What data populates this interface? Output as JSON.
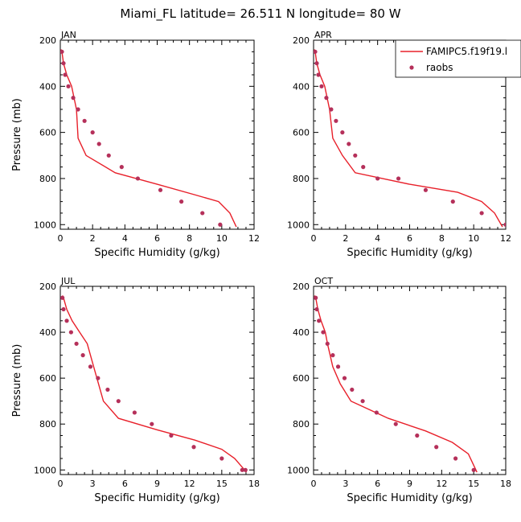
{
  "title": "Miami_FL  latitude= 26.511 N longitude= 80 W",
  "colors": {
    "model": "#e8202a",
    "obs": "#b5305a",
    "axis": "#000000"
  },
  "legend": {
    "entries": [
      {
        "label": "FAMIPC5.f19f19.l",
        "kind": "line"
      },
      {
        "label": "raobs",
        "kind": "marker"
      }
    ]
  },
  "chart_data": [
    {
      "type": "line",
      "panel": "JAN",
      "xlabel": "Specific Humidity (g/kg)",
      "ylabel": "Pressure (mb)",
      "xlim": [
        0,
        12
      ],
      "ylim": [
        1020,
        200
      ],
      "xticks": [
        0,
        2,
        4,
        6,
        8,
        10,
        12
      ],
      "yticks": [
        200,
        400,
        600,
        800,
        1000
      ],
      "series": [
        {
          "name": "FAMIPC5.f19f19.l",
          "kind": "line",
          "x": [
            0.05,
            0.1,
            0.2,
            0.4,
            0.7,
            1.0,
            1.1,
            1.6,
            3.4,
            6.0,
            8.3,
            9.8,
            10.5,
            10.9
          ],
          "y": [
            240,
            250,
            300,
            350,
            400,
            500,
            625,
            700,
            775,
            825,
            870,
            900,
            950,
            1010
          ]
        },
        {
          "name": "raobs",
          "kind": "scatter",
          "x": [
            0.1,
            0.2,
            0.3,
            0.5,
            0.8,
            1.1,
            1.5,
            2.0,
            2.4,
            3.0,
            3.8,
            4.8,
            6.2,
            7.5,
            8.8,
            9.9
          ],
          "y": [
            250,
            300,
            350,
            400,
            450,
            500,
            550,
            600,
            650,
            700,
            750,
            800,
            850,
            900,
            950,
            1000
          ]
        }
      ]
    },
    {
      "type": "line",
      "panel": "APR",
      "xlabel": "Specific Humidity (g/kg)",
      "ylabel": "",
      "xlim": [
        0,
        12
      ],
      "ylim": [
        1020,
        200
      ],
      "xticks": [
        0,
        2,
        4,
        6,
        8,
        10,
        12
      ],
      "yticks": [
        200,
        400,
        600,
        800,
        1000
      ],
      "series": [
        {
          "name": "FAMIPC5.f19f19.l",
          "kind": "line",
          "x": [
            0.05,
            0.1,
            0.2,
            0.4,
            0.7,
            1.0,
            1.2,
            1.8,
            2.6,
            6.0,
            9.0,
            10.5,
            11.3,
            11.8
          ],
          "y": [
            240,
            250,
            300,
            350,
            400,
            500,
            625,
            700,
            775,
            825,
            860,
            900,
            950,
            1010
          ]
        },
        {
          "name": "raobs",
          "kind": "scatter",
          "x": [
            0.1,
            0.2,
            0.3,
            0.5,
            0.8,
            1.1,
            1.4,
            1.8,
            2.2,
            2.6,
            3.1,
            4.0,
            5.3,
            7.0,
            8.7,
            10.5,
            12.0
          ],
          "y": [
            250,
            300,
            350,
            400,
            450,
            500,
            550,
            600,
            650,
            700,
            750,
            800,
            800,
            850,
            900,
            950,
            1000
          ]
        }
      ]
    },
    {
      "type": "line",
      "panel": "JUL",
      "xlabel": "Specific Humidity (g/kg)",
      "ylabel": "Pressure (mb)",
      "xlim": [
        0,
        18
      ],
      "ylim": [
        1020,
        200
      ],
      "xticks": [
        0,
        3,
        6,
        9,
        12,
        15,
        18
      ],
      "yticks": [
        200,
        400,
        600,
        800,
        1000
      ],
      "series": [
        {
          "name": "FAMIPC5.f19f19.l",
          "kind": "line",
          "x": [
            0.2,
            0.3,
            0.6,
            1.1,
            1.8,
            2.5,
            3.1,
            4.0,
            5.4,
            9.0,
            12.5,
            15.0,
            16.2,
            17.3
          ],
          "y": [
            240,
            250,
            300,
            350,
            400,
            450,
            550,
            700,
            775,
            825,
            870,
            910,
            950,
            1010
          ]
        },
        {
          "name": "raobs",
          "kind": "scatter",
          "x": [
            0.2,
            0.3,
            0.6,
            1.0,
            1.5,
            2.1,
            2.8,
            3.5,
            4.4,
            5.4,
            6.9,
            8.5,
            10.3,
            12.4,
            15.0,
            16.9,
            17.2
          ],
          "y": [
            250,
            300,
            350,
            400,
            450,
            500,
            550,
            600,
            650,
            700,
            750,
            800,
            850,
            900,
            950,
            1000,
            1000
          ]
        }
      ]
    },
    {
      "type": "line",
      "panel": "OCT",
      "xlabel": "Specific Humidity (g/kg)",
      "ylabel": "",
      "xlim": [
        0,
        18
      ],
      "ylim": [
        1020,
        200
      ],
      "xticks": [
        0,
        3,
        6,
        9,
        12,
        15,
        18
      ],
      "yticks": [
        200,
        400,
        600,
        800,
        1000
      ],
      "series": [
        {
          "name": "FAMIPC5.f19f19.l",
          "kind": "line",
          "x": [
            0.1,
            0.2,
            0.4,
            0.7,
            1.1,
            1.3,
            1.8,
            2.5,
            3.5,
            7.0,
            10.5,
            13.0,
            14.5,
            15.3
          ],
          "y": [
            240,
            250,
            300,
            350,
            400,
            450,
            550,
            625,
            700,
            775,
            830,
            880,
            930,
            1010
          ]
        },
        {
          "name": "raobs",
          "kind": "scatter",
          "x": [
            0.2,
            0.3,
            0.5,
            0.9,
            1.3,
            1.8,
            2.3,
            2.9,
            3.6,
            4.6,
            5.9,
            7.7,
            9.7,
            11.5,
            13.3,
            15.0
          ],
          "y": [
            250,
            300,
            350,
            400,
            450,
            500,
            550,
            600,
            650,
            700,
            750,
            800,
            850,
            900,
            950,
            1000
          ]
        }
      ]
    }
  ]
}
